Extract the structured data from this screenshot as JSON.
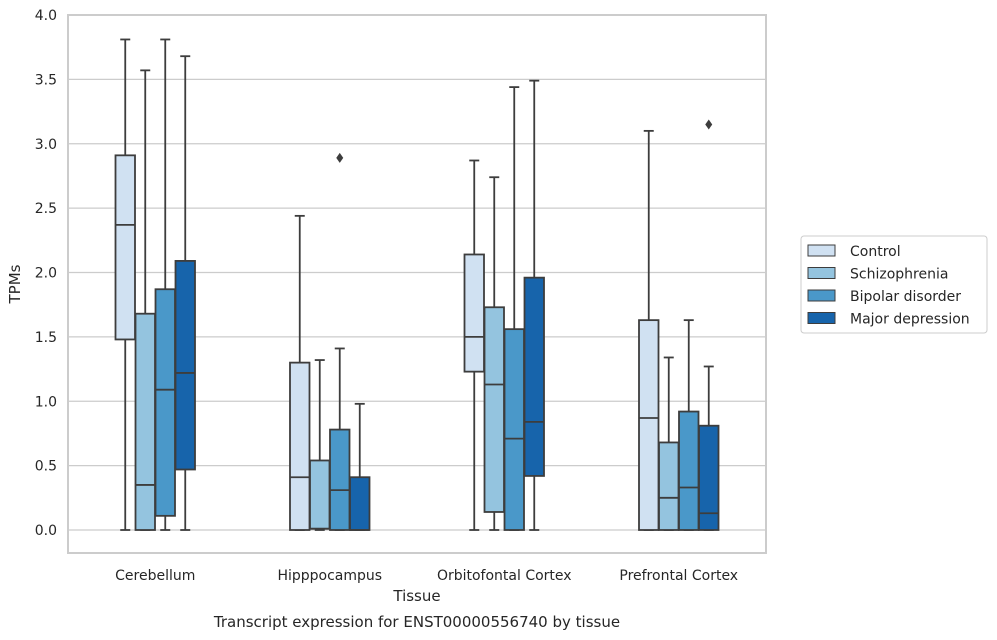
{
  "chart_data": {
    "type": "box",
    "title": "",
    "caption": "Transcript expression for ENST00000556740 by tissue",
    "xlabel": "Tissue",
    "ylabel": "TPMs",
    "ylim": [
      -0.18,
      4.0
    ],
    "yticks": [
      "0.0",
      "0.5",
      "1.0",
      "1.5",
      "2.0",
      "2.5",
      "3.0",
      "3.5",
      "4.0"
    ],
    "grid": "horizontal",
    "legend_position": "right",
    "categories": [
      "Cerebellum",
      "Hipppocampus",
      "Orbitofontal Cortex",
      "Prefrontal Cortex"
    ],
    "series": [
      {
        "name": "Control",
        "color": "#d0e1f2",
        "boxes": [
          {
            "whisker_low": 0.0,
            "q1": 1.48,
            "median": 2.37,
            "q3": 2.91,
            "whisker_high": 3.81,
            "outliers": []
          },
          {
            "whisker_low": 0.0,
            "q1": 0.0,
            "median": 0.41,
            "q3": 1.3,
            "whisker_high": 2.44,
            "outliers": []
          },
          {
            "whisker_low": 0.0,
            "q1": 1.23,
            "median": 1.5,
            "q3": 2.14,
            "whisker_high": 2.87,
            "outliers": []
          },
          {
            "whisker_low": 0.0,
            "q1": 0.0,
            "median": 0.87,
            "q3": 1.63,
            "whisker_high": 3.1,
            "outliers": []
          }
        ]
      },
      {
        "name": "Schizophrenia",
        "color": "#94c4df",
        "boxes": [
          {
            "whisker_low": 0.0,
            "q1": 0.0,
            "median": 0.35,
            "q3": 1.68,
            "whisker_high": 3.57,
            "outliers": []
          },
          {
            "whisker_low": 0.0,
            "q1": 0.01,
            "median": 0.01,
            "q3": 0.54,
            "whisker_high": 1.32,
            "outliers": []
          },
          {
            "whisker_low": 0.0,
            "q1": 0.14,
            "median": 1.13,
            "q3": 1.73,
            "whisker_high": 2.74,
            "outliers": []
          },
          {
            "whisker_low": 0.0,
            "q1": 0.0,
            "median": 0.25,
            "q3": 0.68,
            "whisker_high": 1.34,
            "outliers": []
          }
        ]
      },
      {
        "name": "Bipolar disorder",
        "color": "#4a98c9",
        "boxes": [
          {
            "whisker_low": 0.0,
            "q1": 0.11,
            "median": 1.09,
            "q3": 1.87,
            "whisker_high": 3.81,
            "outliers": []
          },
          {
            "whisker_low": 0.0,
            "q1": 0.0,
            "median": 0.31,
            "q3": 0.78,
            "whisker_high": 1.41,
            "outliers": [
              2.89
            ]
          },
          {
            "whisker_low": 0.0,
            "q1": 0.0,
            "median": 0.71,
            "q3": 1.56,
            "whisker_high": 3.44,
            "outliers": []
          },
          {
            "whisker_low": 0.0,
            "q1": 0.0,
            "median": 0.33,
            "q3": 0.92,
            "whisker_high": 1.63,
            "outliers": []
          }
        ]
      },
      {
        "name": "Major depression",
        "color": "#1764ab",
        "boxes": [
          {
            "whisker_low": 0.0,
            "q1": 0.47,
            "median": 1.22,
            "q3": 2.09,
            "whisker_high": 3.68,
            "outliers": []
          },
          {
            "whisker_low": 0.0,
            "q1": 0.0,
            "median": 0.0,
            "q3": 0.41,
            "whisker_high": 0.98,
            "outliers": []
          },
          {
            "whisker_low": 0.0,
            "q1": 0.42,
            "median": 0.84,
            "q3": 1.96,
            "whisker_high": 3.49,
            "outliers": []
          },
          {
            "whisker_low": 0.0,
            "q1": 0.0,
            "median": 0.13,
            "q3": 0.81,
            "whisker_high": 1.27,
            "outliers": [
              3.15
            ]
          }
        ]
      }
    ]
  }
}
